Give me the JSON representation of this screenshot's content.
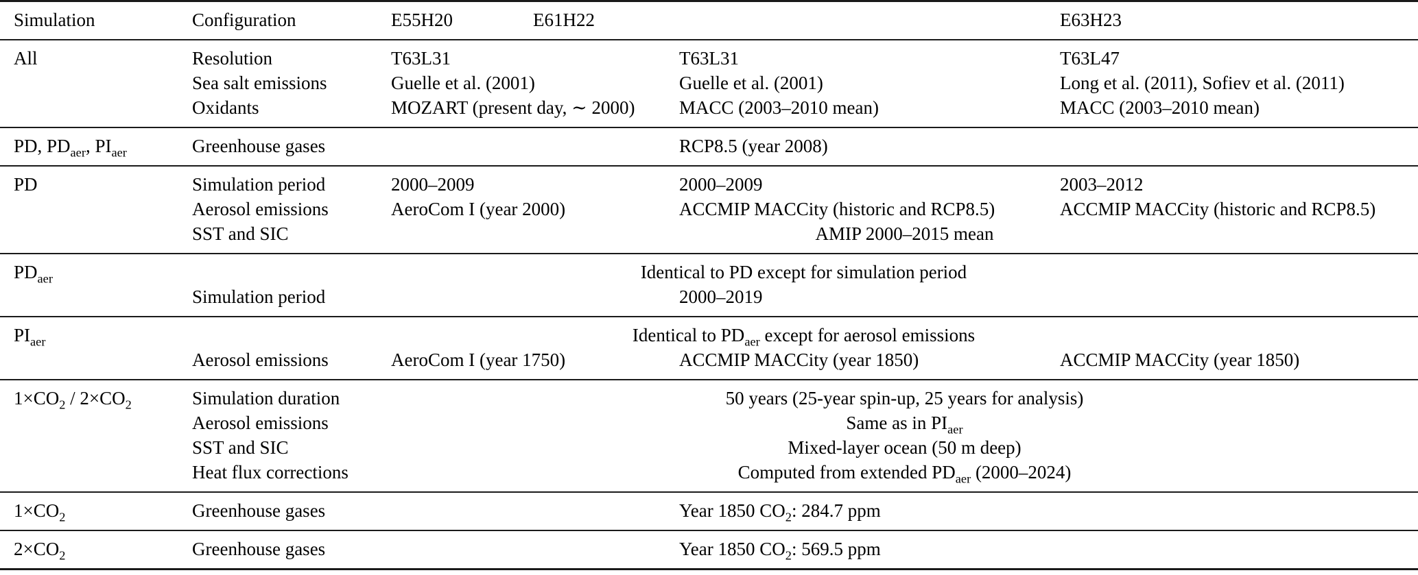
{
  "colors": {
    "text": "#000000",
    "background": "#ffffff",
    "rule": "#1a1a1a"
  },
  "table": {
    "header": [
      "Simulation",
      "Configuration",
      "E55H20",
      "E61H22",
      "E63H23"
    ],
    "sections": {
      "all": {
        "rows": [
          {
            "sim": "All",
            "config": "Resolution",
            "e55": "T63L31",
            "e61": "T63L31",
            "e63": "T63L47"
          },
          {
            "config": "Sea salt emissions",
            "e55": "Guelle et al. (2001)",
            "e61": "Guelle et al. (2001)",
            "e63": "Long et al. (2011), Sofiev et al. (2011)"
          },
          {
            "config": "Oxidants",
            "e55": "MOZART (present day, ∼ 2000)",
            "e61": "MACC (2003–2010 mean)",
            "e63": "MACC (2003–2010 mean)"
          }
        ]
      },
      "ghg_common": {
        "rows": [
          {
            "sim": "PD, PD_{aer}, PI_{aer}",
            "config": "Greenhouse gases",
            "e61": "RCP8.5 (year 2008)"
          }
        ]
      },
      "pd": {
        "rows": [
          {
            "sim": "PD",
            "config": "Simulation period",
            "e55": "2000–2009",
            "e61": "2000–2009",
            "e63": "2003–2012"
          },
          {
            "config": "Aerosol emissions",
            "e55": "AeroCom I (year 2000)",
            "e61": "ACCMIP MACCity (historic and RCP8.5)",
            "e63": "ACCMIP MACCity (historic and RCP8.5)"
          },
          {
            "config": "SST and SIC",
            "span": "AMIP 2000–2015 mean"
          }
        ]
      },
      "pdaer": {
        "rows": [
          {
            "sim": "PD_{aer}",
            "ident": "Identical to PD except for simulation period"
          },
          {
            "config": "Simulation period",
            "e61": "2000–2019"
          }
        ]
      },
      "piaer": {
        "rows": [
          {
            "sim": "PI_{aer}",
            "ident": "Identical to PD_{aer} except for aerosol emissions"
          },
          {
            "config": "Aerosol emissions",
            "e55": "AeroCom I (year 1750)",
            "e61": "ACCMIP MACCity (year 1850)",
            "e63": "ACCMIP MACCity (year 1850)"
          }
        ]
      },
      "co2_common": {
        "rows": [
          {
            "sim": "1×CO_{2} / 2×CO_{2}",
            "config": "Simulation duration",
            "span": "50 years (25-year spin-up, 25 years for analysis)"
          },
          {
            "config": "Aerosol emissions",
            "span": "Same as in PI_{aer}"
          },
          {
            "config": "SST and SIC",
            "span": "Mixed-layer ocean (50 m deep)"
          },
          {
            "config": "Heat flux corrections",
            "span": "Computed from extended PD_{aer} (2000–2024)"
          }
        ]
      },
      "co2x1": {
        "rows": [
          {
            "sim": "1×CO_{2}",
            "config": "Greenhouse gases",
            "e61": "Year 1850 CO_{2}: 284.7 ppm"
          }
        ]
      },
      "co2x2": {
        "rows": [
          {
            "sim": "2×CO_{2}",
            "config": "Greenhouse gases",
            "e61": "Year 1850 CO_{2}: 569.5 ppm"
          }
        ]
      }
    }
  }
}
